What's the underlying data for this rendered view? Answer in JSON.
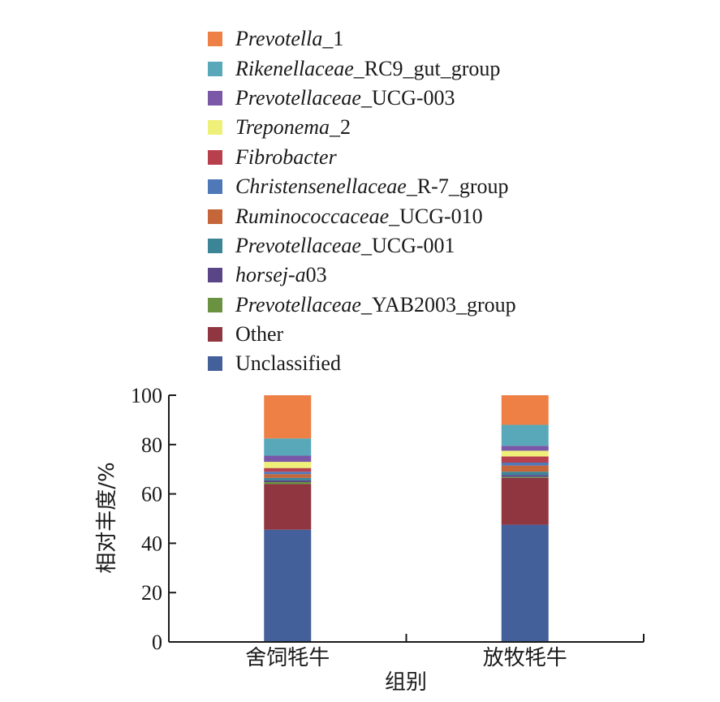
{
  "chart_data": {
    "type": "bar",
    "stacked": true,
    "xlabel": "组别",
    "ylabel": "相对丰度/%",
    "ylim": [
      0,
      100
    ],
    "yticks": [
      0,
      20,
      40,
      60,
      80,
      100
    ],
    "categories": [
      "舍饲牦牛",
      "放牧牦牛"
    ],
    "legend_position": "top",
    "series": [
      {
        "name": "Unclassified",
        "name_italic": "",
        "name_rest": "Unclassified",
        "color": "#44609b",
        "values": [
          45.5,
          47.5
        ]
      },
      {
        "name": "Other",
        "name_italic": "",
        "name_rest": "Other",
        "color": "#8f3641",
        "values": [
          18.5,
          19.0
        ]
      },
      {
        "name": "Prevotellaceae_YAB2003_group",
        "name_italic": "Prevotellaceae",
        "name_rest": "_YAB2003_group",
        "color": "#6a9241",
        "values": [
          0.8,
          0.4
        ]
      },
      {
        "name": "horsej-a03",
        "name_italic": "horsej-a",
        "name_rest": "03",
        "color": "#5a4687",
        "values": [
          0.7,
          0.8
        ]
      },
      {
        "name": "Prevotellaceae_UCG-001",
        "name_italic": "Prevotellaceae",
        "name_rest": "_UCG-001",
        "color": "#3b8596",
        "values": [
          1.0,
          1.3
        ]
      },
      {
        "name": "Ruminococcaceae_UCG-010",
        "name_italic": "Ruminococcaceae",
        "name_rest": "_UCG-010",
        "color": "#c4663a",
        "values": [
          1.5,
          2.5
        ]
      },
      {
        "name": "Christensenellaceae_R-7_group",
        "name_italic": "Christensenellaceae",
        "name_rest": "_R-7_group",
        "color": "#4e78b8",
        "values": [
          1.0,
          1.2
        ]
      },
      {
        "name": "Fibrobacter",
        "name_italic": "Fibrobacter",
        "name_rest": "",
        "color": "#b8404d",
        "values": [
          1.5,
          2.5
        ]
      },
      {
        "name": "Treponema_2",
        "name_italic": "Treponema",
        "name_rest": "_2",
        "color": "#eef07a",
        "values": [
          2.5,
          2.3
        ]
      },
      {
        "name": "Prevotellaceae_UCG-003",
        "name_italic": "Prevotellaceae",
        "name_rest": "_UCG-003",
        "color": "#7b57a8",
        "values": [
          2.5,
          2.0
        ]
      },
      {
        "name": "Rikenellaceae_RC9_gut_group",
        "name_italic": "Rikenellaceae",
        "name_rest": "_RC9_gut_group",
        "color": "#59a8ba",
        "values": [
          7.0,
          8.5
        ]
      },
      {
        "name": "Prevotella_1",
        "name_italic": "Prevotella",
        "name_rest": "_1",
        "color": "#ee8045",
        "values": [
          17.5,
          12.0
        ]
      }
    ]
  }
}
